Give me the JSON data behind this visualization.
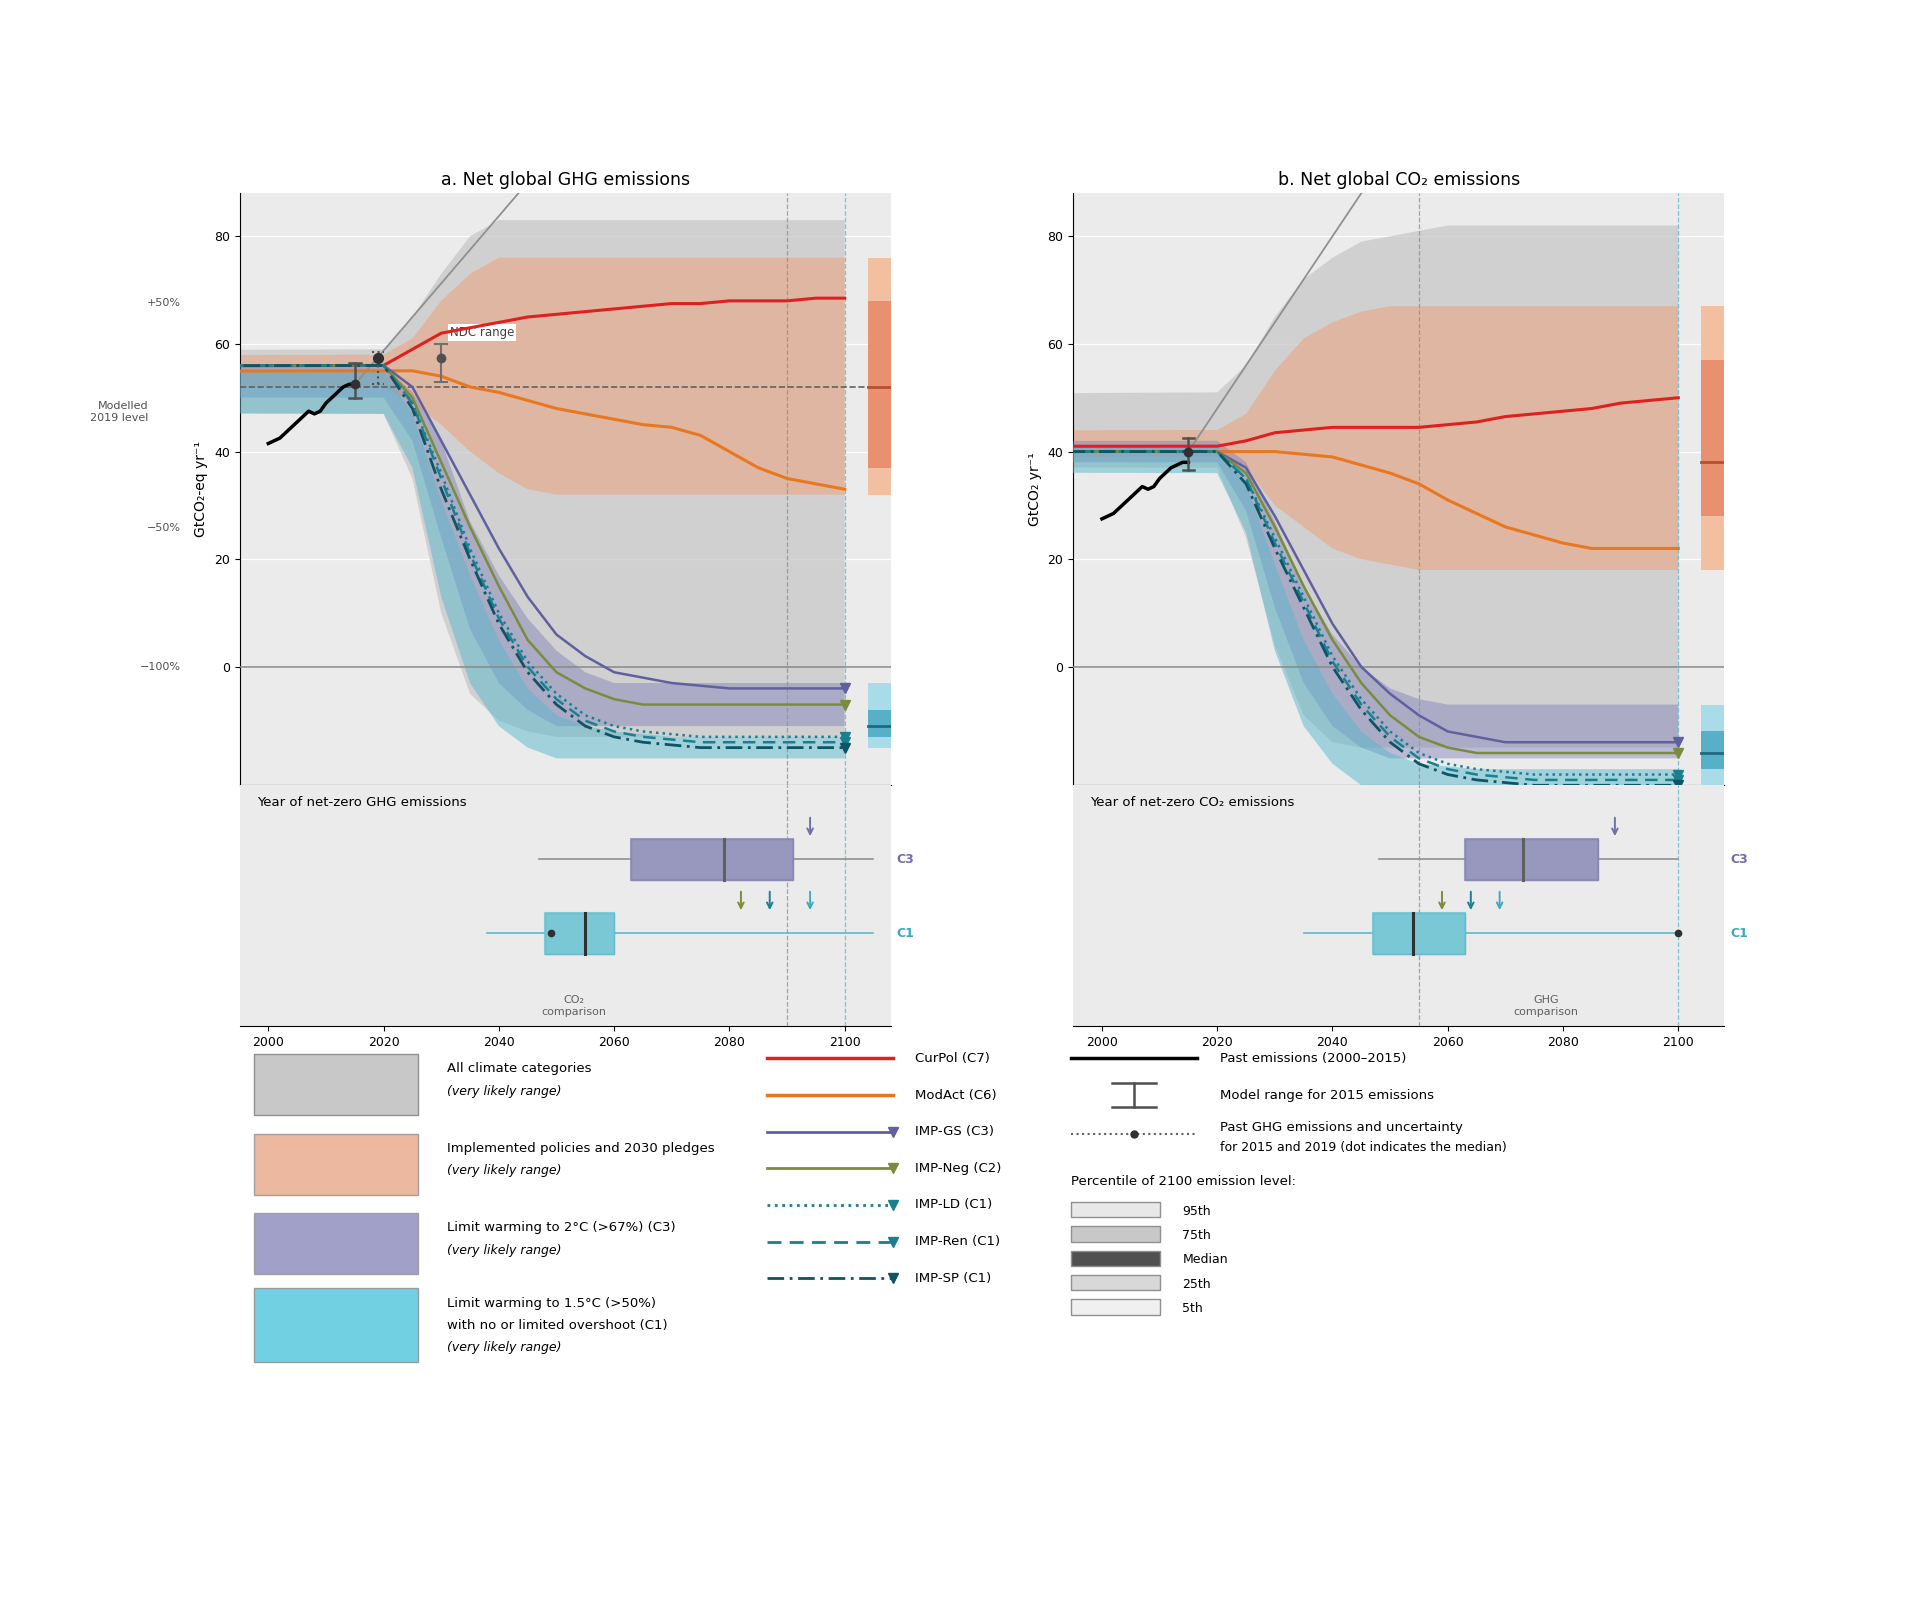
{
  "title_a": "a. Net global GHG emissions",
  "title_b": "b. Net global CO₂ emissions",
  "ylabel_a": "GtCO₂-eq yr⁻¹",
  "ylabel_b": "GtCO₂ yr⁻¹",
  "past_years": [
    2000,
    2001,
    2002,
    2003,
    2004,
    2005,
    2006,
    2007,
    2008,
    2009,
    2010,
    2011,
    2012,
    2013,
    2014,
    2015
  ],
  "past_a": [
    41.5,
    42.0,
    42.5,
    43.5,
    44.5,
    45.5,
    46.5,
    47.5,
    47.0,
    47.5,
    49.0,
    50.0,
    51.0,
    52.0,
    52.5,
    52.5
  ],
  "past_b": [
    27.5,
    28.0,
    28.5,
    29.5,
    30.5,
    31.5,
    32.5,
    33.5,
    33.0,
    33.5,
    35.0,
    36.0,
    37.0,
    37.5,
    38.0,
    38.0
  ],
  "model_range_2015_a": [
    50.0,
    56.5
  ],
  "dot_2015_a": 52.5,
  "dot_2019_a": 57.4,
  "model_range_2019_a_low": 52.5,
  "model_range_2019_a_high": 58.5,
  "model_range_2019_a_cap_low": 52.0,
  "model_range_2019_a_cap_high": 59.0,
  "model_range_2015_b": [
    36.5,
    42.5
  ],
  "dot_2015_b": 40.0,
  "modelled_2019_a": 52.0,
  "sy": [
    2020,
    2025,
    2030,
    2035,
    2040,
    2045,
    2050,
    2055,
    2060,
    2065,
    2070,
    2075,
    2080,
    2085,
    2090,
    2095,
    2100
  ],
  "curpol_a": [
    56,
    59,
    62,
    63,
    64,
    65,
    65.5,
    66,
    66.5,
    67,
    67.5,
    67.5,
    68,
    68,
    68,
    68.5,
    68.5
  ],
  "modact_a": [
    55,
    55,
    54,
    52,
    51,
    49.5,
    48,
    47,
    46,
    45,
    44.5,
    43,
    40,
    37,
    35,
    34,
    33
  ],
  "impgs_a": [
    56,
    52,
    42,
    32,
    22,
    13,
    6,
    2,
    -1,
    -2,
    -3,
    -3.5,
    -4,
    -4,
    -4,
    -4,
    -4
  ],
  "impneg_a": [
    56,
    50,
    38,
    26,
    15,
    5,
    -1,
    -4,
    -6,
    -7,
    -7,
    -7,
    -7,
    -7,
    -7,
    -7,
    -7
  ],
  "impld_a": [
    56,
    49,
    36,
    22,
    10,
    1,
    -5,
    -9,
    -11,
    -12,
    -12.5,
    -13,
    -13,
    -13,
    -13,
    -13,
    -13
  ],
  "impren_a": [
    56,
    49,
    35,
    21,
    9,
    0,
    -6,
    -10,
    -12,
    -13,
    -13.5,
    -14,
    -14,
    -14,
    -14,
    -14,
    -14
  ],
  "impsp_a": [
    56,
    48,
    33,
    20,
    8,
    -1,
    -7,
    -11,
    -13,
    -14,
    -14.5,
    -15,
    -15,
    -15,
    -15,
    -15,
    -15
  ],
  "curpol_b": [
    41,
    42,
    43.5,
    44,
    44.5,
    44.5,
    44.5,
    44.5,
    45,
    45.5,
    46.5,
    47,
    47.5,
    48,
    49,
    49.5,
    50
  ],
  "modact_b": [
    40,
    40,
    40,
    39.5,
    39,
    37.5,
    36,
    34,
    31,
    28.5,
    26,
    24.5,
    23,
    22,
    22,
    22,
    22
  ],
  "impgs_b": [
    40,
    37,
    28,
    18,
    8,
    0,
    -5,
    -9,
    -12,
    -13,
    -14,
    -14,
    -14,
    -14,
    -14,
    -14,
    -14
  ],
  "impneg_b": [
    40,
    36,
    26,
    15,
    5,
    -3,
    -9,
    -13,
    -15,
    -16,
    -16,
    -16,
    -16,
    -16,
    -16,
    -16,
    -16
  ],
  "impld_b": [
    40,
    35,
    24,
    13,
    2,
    -6,
    -12,
    -16,
    -18,
    -19,
    -19.5,
    -20,
    -20,
    -20,
    -20,
    -20,
    -20
  ],
  "impren_b": [
    40,
    35,
    23,
    12,
    1,
    -7,
    -13,
    -17,
    -19,
    -20,
    -20.5,
    -21,
    -21,
    -21,
    -21,
    -21,
    -21
  ],
  "impsp_b": [
    40,
    34,
    22,
    11,
    0,
    -8,
    -14,
    -18,
    -20,
    -21,
    -21.5,
    -22,
    -22,
    -22,
    -22,
    -22,
    -22
  ],
  "all_upper_a": [
    59,
    65,
    73,
    80,
    83,
    83,
    83,
    83,
    83,
    83,
    83,
    83,
    83,
    83,
    83,
    83,
    83
  ],
  "all_lower_a": [
    47,
    35,
    10,
    -5,
    -10,
    -12,
    -13,
    -13,
    -13,
    -13,
    -13,
    -13,
    -13,
    -13,
    -13,
    -13,
    -13
  ],
  "impl_upper_a": [
    58,
    61,
    68,
    73,
    76,
    76,
    76,
    76,
    76,
    76,
    76,
    76,
    76,
    76,
    76,
    76,
    76
  ],
  "impl_lower_a": [
    52,
    49,
    45,
    40,
    36,
    33,
    32,
    32,
    32,
    32,
    32,
    32,
    32,
    32,
    32,
    32,
    32
  ],
  "c3_upper_a": [
    56,
    51,
    42,
    27,
    17,
    9,
    3,
    -1,
    -3,
    -3,
    -3,
    -3,
    -3,
    -3,
    -3,
    -3,
    -3
  ],
  "c3_lower_a": [
    50,
    42,
    24,
    7,
    -3,
    -8,
    -11,
    -11,
    -11,
    -11,
    -11,
    -11,
    -11,
    -11,
    -11,
    -11,
    -11
  ],
  "c1_upper_a": [
    55,
    47,
    31,
    17,
    5,
    -4,
    -9,
    -11,
    -12,
    -12.5,
    -13,
    -13,
    -13,
    -13,
    -13,
    -13,
    -13
  ],
  "c1_lower_a": [
    47,
    37,
    13,
    -3,
    -11,
    -15,
    -17,
    -17,
    -17,
    -17,
    -17,
    -17,
    -17,
    -17,
    -17,
    -17,
    -17
  ],
  "all_upper_b": [
    51,
    56,
    65,
    72,
    76,
    79,
    80,
    81,
    82,
    82,
    82,
    82,
    82,
    82,
    82,
    82,
    82
  ],
  "all_lower_b": [
    37,
    24,
    4,
    -9,
    -14,
    -15,
    -15,
    -15,
    -15,
    -15,
    -15,
    -15,
    -15,
    -15,
    -15,
    -15,
    -15
  ],
  "impl_upper_b": [
    44,
    47,
    55,
    61,
    64,
    66,
    67,
    67,
    67,
    67,
    67,
    67,
    67,
    67,
    67,
    67,
    67
  ],
  "impl_lower_b": [
    39,
    37,
    30,
    26,
    22,
    20,
    19,
    18,
    18,
    18,
    18,
    18,
    18,
    18,
    18,
    18,
    18
  ],
  "c3_upper_b": [
    42,
    38,
    27,
    15,
    6,
    0,
    -4,
    -6,
    -7,
    -7,
    -7,
    -7,
    -7,
    -7,
    -7,
    -7,
    -7
  ],
  "c3_lower_b": [
    38,
    29,
    11,
    -3,
    -11,
    -15,
    -17,
    -17,
    -17,
    -17,
    -17,
    -17,
    -17,
    -17,
    -17,
    -17,
    -17
  ],
  "c1_upper_b": [
    41,
    34,
    19,
    5,
    -5,
    -12,
    -16,
    -18,
    -18.5,
    -19,
    -19,
    -19,
    -19,
    -19,
    -19,
    -19,
    -19
  ],
  "c1_lower_b": [
    36,
    25,
    3,
    -11,
    -18,
    -22,
    -24,
    -24.5,
    -25,
    -25,
    -25,
    -25,
    -25,
    -25,
    -25,
    -25,
    -25
  ],
  "ndc_2030_low_a": 53,
  "ndc_2030_high_a": 60,
  "ndc_dot_a": 57.4,
  "diag_x1": 2015,
  "diag_y1_a": 52.5,
  "diag_x2": 2045,
  "diag_y2_a": 90,
  "diag_y1_b": 40.0,
  "diag_y2_b": 88,
  "xlim": [
    1995,
    2108
  ],
  "ylim": [
    -22,
    88
  ],
  "xticks": [
    2000,
    2020,
    2040,
    2060,
    2080,
    2100
  ],
  "yticks": [
    0,
    20,
    40,
    60,
    80
  ],
  "pct50_a": 78,
  "pct0_a": 52,
  "pctm50_a": 26,
  "pctm100_a": 0,
  "vline1_x": 2090,
  "vline2_x": 2100,
  "bar_impl_p95_a": 76,
  "bar_impl_p75_a": 68,
  "bar_impl_med_a": 52,
  "bar_impl_p25_a": 37,
  "bar_impl_p5_a": 32,
  "bar_c1_p95_a": -3,
  "bar_c1_p75_a": -8,
  "bar_c1_med_a": -11,
  "bar_c1_p25_a": -13,
  "bar_c1_p5_a": -15,
  "bar_impl_p95_b": 67,
  "bar_impl_p75_b": 57,
  "bar_impl_med_b": 38,
  "bar_impl_p25_b": 28,
  "bar_impl_p5_b": 18,
  "bar_c1_p95_b": -7,
  "bar_c1_p75_b": -12,
  "bar_c1_med_b": -16,
  "bar_c1_p25_b": -19,
  "bar_c1_p5_b": -24,
  "nz_ghg_c3_wlo": 2047,
  "nz_ghg_c3_q25": 2063,
  "nz_ghg_c3_med": 2079,
  "nz_ghg_c3_q75": 2091,
  "nz_ghg_c3_whi": 2105,
  "nz_ghg_c3_arr": 2094,
  "nz_ghg_c1_wlo": 2038,
  "nz_ghg_c1_q25": 2048,
  "nz_ghg_c1_med": 2055,
  "nz_ghg_c1_q75": 2060,
  "nz_ghg_c1_whi": 2105,
  "nz_ghg_c1_dot": 2049,
  "nz_ghg_c1_arr1": 2082,
  "nz_ghg_c1_arr2": 2087,
  "nz_ghg_c1_arr3": 2094,
  "nz_co2_c3_wlo": 2048,
  "nz_co2_c3_q25": 2063,
  "nz_co2_c3_med": 2073,
  "nz_co2_c3_q75": 2086,
  "nz_co2_c3_whi": 2100,
  "nz_co2_c3_arr": 2089,
  "nz_co2_c1_wlo": 2035,
  "nz_co2_c1_q25": 2047,
  "nz_co2_c1_med": 2054,
  "nz_co2_c1_q75": 2063,
  "nz_co2_c1_whi": 2100,
  "nz_co2_c1_dot": 2100,
  "nz_co2_c1_arr1": 2059,
  "nz_co2_c1_arr2": 2064,
  "nz_co2_c1_arr3": 2069,
  "col_curpol": "#e02020",
  "col_modact": "#e87820",
  "col_impgs": "#6060a0",
  "col_impneg": "#7a8c3c",
  "col_impld": "#1a8090",
  "col_impren": "#1a8090",
  "col_impsp": "#0d5565",
  "col_all": "#c8c8c8",
  "col_impl": "#e8a888",
  "col_c3": "#8080b8",
  "col_c1": "#58b8cc",
  "col_bar_impl_light": "#f0c0a8",
  "col_bar_impl_mid": "#e89070",
  "col_bar_impl_dark": "#c86040",
  "col_bar_c1_light": "#a8dce8",
  "col_bar_c1_mid": "#60b8d0",
  "col_bar_c1_dark": "#3090b0"
}
